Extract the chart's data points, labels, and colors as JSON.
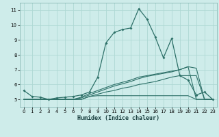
{
  "xlabel": "Humidex (Indice chaleur)",
  "bg_color": "#ceecea",
  "grid_color": "#aed8d4",
  "line_color": "#2d7068",
  "xlim": [
    -0.5,
    23.5
  ],
  "ylim": [
    4.5,
    11.5
  ],
  "xticks": [
    0,
    1,
    2,
    3,
    4,
    5,
    6,
    7,
    8,
    9,
    10,
    11,
    12,
    13,
    14,
    15,
    16,
    17,
    18,
    19,
    20,
    21,
    22,
    23
  ],
  "yticks": [
    5,
    6,
    7,
    8,
    9,
    10,
    11
  ],
  "x": [
    0,
    1,
    2,
    3,
    4,
    5,
    6,
    7,
    8,
    9,
    10,
    11,
    12,
    13,
    14,
    15,
    16,
    17,
    18,
    19,
    20,
    21,
    22,
    23
  ],
  "main_curve": [
    5.6,
    5.2,
    5.15,
    5.0,
    5.1,
    5.15,
    5.2,
    5.3,
    5.5,
    6.5,
    8.8,
    9.5,
    9.7,
    9.8,
    11.1,
    10.4,
    9.2,
    7.8,
    9.1,
    6.6,
    6.3,
    5.3,
    5.5,
    5.0
  ],
  "extra_curves": [
    [
      5.0,
      5.0,
      5.0,
      5.0,
      5.0,
      5.0,
      5.0,
      5.0,
      5.2,
      5.25,
      5.25,
      5.25,
      5.25,
      5.25,
      5.25,
      5.25,
      5.25,
      5.25,
      5.25,
      5.25,
      5.25,
      5.0,
      5.0,
      5.0
    ],
    [
      5.0,
      5.0,
      5.0,
      5.0,
      5.0,
      5.0,
      5.0,
      5.0,
      5.2,
      5.35,
      5.5,
      5.6,
      5.75,
      5.85,
      6.0,
      6.1,
      6.2,
      6.35,
      6.5,
      6.6,
      6.6,
      6.6,
      5.0,
      5.0
    ],
    [
      5.0,
      5.0,
      5.0,
      5.0,
      5.0,
      5.0,
      5.0,
      5.1,
      5.3,
      5.5,
      5.7,
      5.9,
      6.05,
      6.2,
      6.4,
      6.55,
      6.65,
      6.75,
      6.85,
      7.0,
      7.2,
      7.1,
      5.0,
      5.0
    ],
    [
      5.0,
      5.0,
      5.0,
      5.0,
      5.0,
      5.0,
      5.0,
      5.15,
      5.4,
      5.6,
      5.8,
      6.0,
      6.15,
      6.3,
      6.5,
      6.6,
      6.7,
      6.8,
      6.9,
      7.0,
      7.2,
      5.0,
      5.0,
      5.0
    ]
  ]
}
